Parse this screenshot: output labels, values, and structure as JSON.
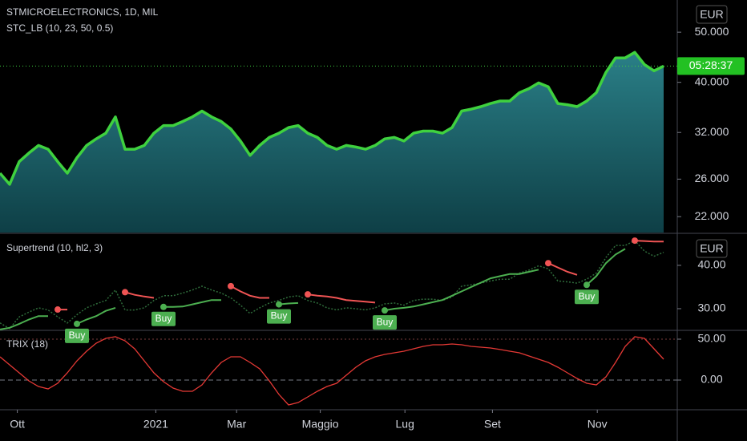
{
  "chart_data": [
    {
      "type": "area",
      "title": "STMICROELECTRONICS, 1D, MIL",
      "subtitle": "STC_LB (10, 23, 50, 0.5)",
      "currency": "EUR",
      "countdown": "05:28:37",
      "log_scale": true,
      "xlim": [
        0,
        70
      ],
      "ylim": [
        20.5,
        57.7
      ],
      "yticks": [
        {
          "value": 50,
          "label": "50.000"
        },
        {
          "value": 40,
          "label": "40.000"
        },
        {
          "value": 32,
          "label": "32.000"
        },
        {
          "value": 26,
          "label": "26.000"
        },
        {
          "value": 22,
          "label": "22.000"
        }
      ],
      "color": "#3fd13f",
      "values": [
        26.7,
        25.4,
        28.1,
        29.2,
        30.2,
        29.7,
        28.1,
        26.7,
        28.6,
        30.2,
        31.1,
        31.9,
        34.3,
        29.7,
        29.7,
        30.2,
        31.9,
        33.0,
        33.0,
        33.6,
        34.3,
        35.2,
        34.3,
        33.6,
        32.5,
        30.8,
        28.9,
        30.2,
        31.3,
        31.9,
        32.7,
        33.0,
        31.9,
        31.3,
        30.2,
        29.7,
        30.2,
        30.0,
        29.7,
        30.2,
        31.1,
        31.3,
        30.8,
        31.9,
        32.2,
        32.2,
        31.9,
        32.7,
        35.2,
        35.5,
        35.9,
        36.4,
        36.8,
        36.8,
        38.2,
        38.9,
        39.9,
        39.2,
        36.4,
        36.2,
        35.9,
        36.8,
        38.2,
        41.8,
        44.6,
        44.6,
        45.7,
        43.3,
        42.1,
        43.0
      ]
    },
    {
      "type": "line",
      "title": "Supertrend (10, hl2, 3)",
      "currency": "EUR",
      "xlim": [
        0,
        70
      ],
      "ylim": [
        25.0,
        47.2
      ],
      "yticks": [
        {
          "value": 40,
          "label": "40.00"
        },
        {
          "value": 30,
          "label": "30.00"
        }
      ],
      "series": [
        {
          "color": "#4caf50",
          "values": [
            25.2,
            25.6,
            26.5,
            27.5,
            28.3,
            28.3,
            null,
            null,
            26.5,
            27.5,
            28.3,
            29.5,
            30.2,
            null,
            null,
            null,
            null,
            30.4,
            30.4,
            30.5,
            31.0,
            31.5,
            32.0,
            32.0,
            null,
            null,
            null,
            null,
            null,
            31.0,
            31.2,
            31.3,
            null,
            null,
            null,
            null,
            null,
            null,
            null,
            null,
            29.6,
            30.0,
            30.2,
            30.5,
            31.0,
            31.5,
            32.0,
            33.0,
            34.0,
            35.0,
            36.0,
            37.0,
            37.5,
            38.0,
            38.0,
            38.5,
            39.0,
            null,
            null,
            null,
            null,
            35.5,
            37.5,
            40.5,
            42.5,
            43.8,
            null,
            null,
            null,
            null
          ]
        },
        {
          "color": "#f05454",
          "values": [
            null,
            null,
            null,
            null,
            null,
            null,
            29.8,
            29.8,
            null,
            null,
            null,
            null,
            null,
            33.8,
            33.2,
            32.8,
            32.5,
            null,
            null,
            null,
            null,
            null,
            null,
            null,
            35.2,
            34.0,
            33.0,
            32.5,
            32.5,
            null,
            null,
            null,
            33.3,
            33.0,
            32.8,
            32.5,
            32.0,
            31.8,
            31.6,
            31.4,
            null,
            null,
            null,
            null,
            null,
            null,
            null,
            null,
            null,
            null,
            null,
            null,
            null,
            null,
            null,
            null,
            null,
            40.5,
            39.5,
            38.5,
            37.8,
            null,
            null,
            null,
            null,
            null,
            45.7,
            45.6,
            45.5,
            45.5
          ]
        }
      ],
      "signal_label": "Buy",
      "signals": [
        8,
        17,
        29,
        40,
        61
      ]
    },
    {
      "type": "line",
      "title": "TRIX (18)",
      "xlim": [
        0,
        70
      ],
      "ylim": [
        -35.3,
        59.8
      ],
      "yticks": [
        {
          "value": 50,
          "label": "50.00"
        },
        {
          "value": 0,
          "label": "0.00"
        }
      ],
      "xticks": [
        {
          "value": 1.8,
          "label": "Ott"
        },
        {
          "value": 16.2,
          "label": "2021"
        },
        {
          "value": 24.6,
          "label": "Mar"
        },
        {
          "value": 33.3,
          "label": "Maggio"
        },
        {
          "value": 42.1,
          "label": "Lug"
        },
        {
          "value": 51.2,
          "label": "Set"
        },
        {
          "value": 62.1,
          "label": "Nov"
        }
      ],
      "series": [
        {
          "color": "#e53935",
          "values": [
            28.4,
            18.6,
            8.8,
            -1,
            -7.8,
            -10.8,
            -3.9,
            8.8,
            23.5,
            35.3,
            45.1,
            51,
            53,
            48,
            38.2,
            23.5,
            8.8,
            -2,
            -9.8,
            -13.7,
            -13.7,
            -5.9,
            8.8,
            21.6,
            28.4,
            28.4,
            21.6,
            13.7,
            -1,
            -17.6,
            -30.4,
            -27.5,
            -20.6,
            -13.7,
            -7.8,
            -3.9,
            5.9,
            15.7,
            23.5,
            28.4,
            31.4,
            33.3,
            35.3,
            38.2,
            41.2,
            43.1,
            43.1,
            44.1,
            43.1,
            41.2,
            40.2,
            39.2,
            37.3,
            35.3,
            33.3,
            29.4,
            25.5,
            21.6,
            15.7,
            8.8,
            2,
            -3.9,
            -5.9,
            3.9,
            21.6,
            41.2,
            53,
            51,
            38.2,
            25.5
          ]
        }
      ]
    }
  ]
}
